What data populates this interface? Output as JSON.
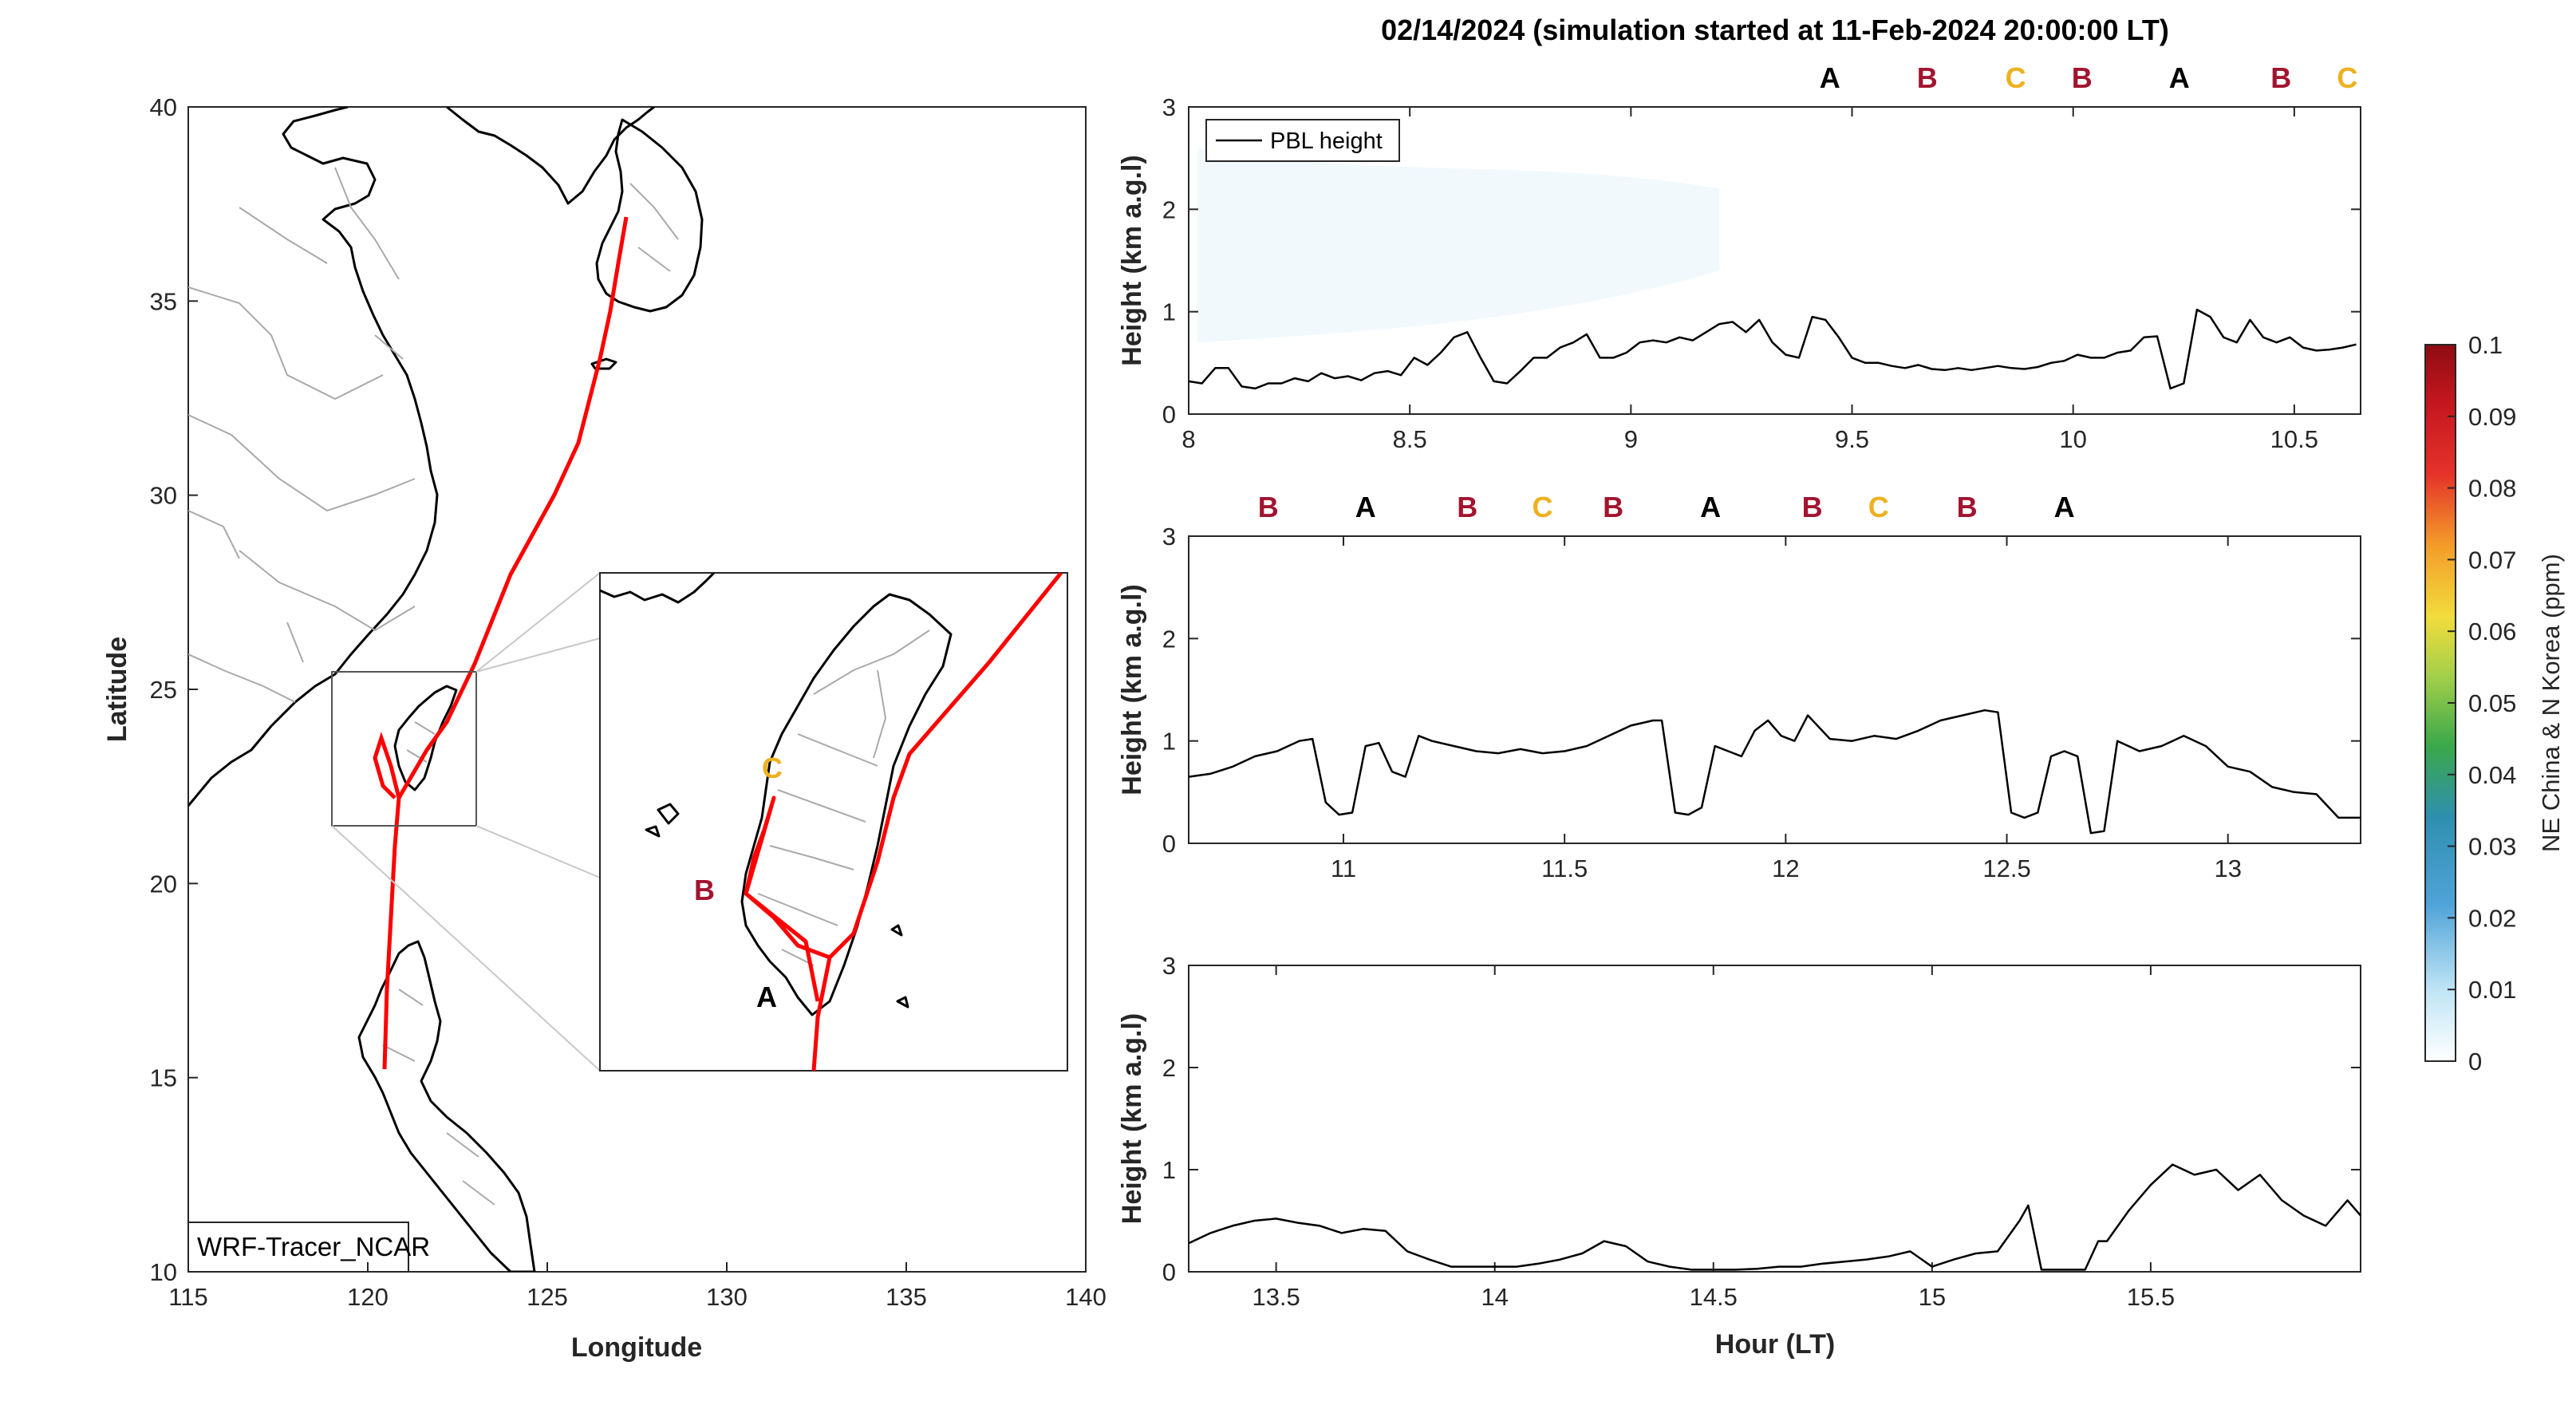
{
  "colors": {
    "marker_A": "#000000",
    "marker_B": "#a2142f",
    "marker_C": "#edb120",
    "track": "#ff0000",
    "pbl": "#000000"
  },
  "map": {
    "xlabel": "Longitude",
    "ylabel": "Latitude",
    "xlim": [
      115,
      140
    ],
    "ylim": [
      10,
      40
    ],
    "xticks": [
      "115",
      "120",
      "125",
      "130",
      "135",
      "140"
    ],
    "yticks": [
      "10",
      "15",
      "20",
      "25",
      "30",
      "35",
      "40"
    ],
    "model_label": "WRF-Tracer_NCAR",
    "inset_labels": [
      "A",
      "B",
      "C"
    ]
  },
  "title": "02/14/2024 (simulation started at 11-Feb-2024 20:00:00 LT)",
  "colorbar": {
    "label": "NE China & N Korea (ppm)",
    "ticks": [
      "0",
      "0.01",
      "0.02",
      "0.03",
      "0.04",
      "0.05",
      "0.06",
      "0.07",
      "0.08",
      "0.09",
      "0.1"
    ]
  },
  "chart_data": [
    {
      "type": "line",
      "xlim": [
        8,
        10.65
      ],
      "ylim": [
        0,
        3
      ],
      "ylabel": "Height (km a.g.l)",
      "xlabel": "",
      "xticks": [
        "8",
        "8.5",
        "9",
        "9.5",
        "10",
        "10.5"
      ],
      "yticks": [
        "0",
        "1",
        "2",
        "3"
      ],
      "legend": {
        "entry": "PBL height",
        "position": "top-left"
      },
      "markers": [
        {
          "x": 9.45,
          "label": "A"
        },
        {
          "x": 9.67,
          "label": "B"
        },
        {
          "x": 9.87,
          "label": "C"
        },
        {
          "x": 10.02,
          "label": "B"
        },
        {
          "x": 10.24,
          "label": "A"
        },
        {
          "x": 10.47,
          "label": "B"
        },
        {
          "x": 10.62,
          "label": "C"
        }
      ],
      "series": [
        {
          "name": "PBL height",
          "x": [
            8,
            8.03,
            8.06,
            8.09,
            8.12,
            8.15,
            8.18,
            8.21,
            8.24,
            8.27,
            8.3,
            8.33,
            8.36,
            8.39,
            8.42,
            8.45,
            8.48,
            8.51,
            8.54,
            8.57,
            8.6,
            8.63,
            8.66,
            8.69,
            8.72,
            8.75,
            8.78,
            8.81,
            8.84,
            8.87,
            8.9,
            8.93,
            8.96,
            8.99,
            9.02,
            9.05,
            9.08,
            9.11,
            9.14,
            9.17,
            9.2,
            9.23,
            9.26,
            9.29,
            9.32,
            9.35,
            9.38,
            9.41,
            9.44,
            9.47,
            9.5,
            9.53,
            9.56,
            9.59,
            9.62,
            9.65,
            9.68,
            9.71,
            9.74,
            9.77,
            9.8,
            9.83,
            9.86,
            9.89,
            9.92,
            9.95,
            9.98,
            10.01,
            10.04,
            10.07,
            10.1,
            10.13,
            10.16,
            10.19,
            10.22,
            10.25,
            10.28,
            10.31,
            10.34,
            10.37,
            10.4,
            10.43,
            10.46,
            10.49,
            10.52,
            10.55,
            10.58,
            10.61,
            10.64
          ],
          "values": [
            0.32,
            0.3,
            0.45,
            0.45,
            0.27,
            0.25,
            0.3,
            0.3,
            0.35,
            0.32,
            0.4,
            0.35,
            0.37,
            0.33,
            0.4,
            0.42,
            0.38,
            0.55,
            0.48,
            0.6,
            0.75,
            0.8,
            0.55,
            0.32,
            0.3,
            0.42,
            0.55,
            0.55,
            0.65,
            0.7,
            0.78,
            0.55,
            0.55,
            0.6,
            0.7,
            0.72,
            0.7,
            0.75,
            0.72,
            0.8,
            0.88,
            0.9,
            0.8,
            0.92,
            0.7,
            0.58,
            0.55,
            0.95,
            0.92,
            0.75,
            0.55,
            0.5,
            0.5,
            0.47,
            0.45,
            0.48,
            0.44,
            0.43,
            0.45,
            0.43,
            0.45,
            0.47,
            0.45,
            0.44,
            0.46,
            0.5,
            0.52,
            0.58,
            0.55,
            0.55,
            0.6,
            0.62,
            0.75,
            0.76,
            0.25,
            0.3,
            1.02,
            0.95,
            0.75,
            0.7,
            0.92,
            0.75,
            0.7,
            0.75,
            0.65,
            0.62,
            0.63,
            0.65,
            0.68
          ]
        }
      ]
    },
    {
      "type": "line",
      "xlim": [
        10.65,
        13.3
      ],
      "ylim": [
        0,
        3
      ],
      "ylabel": "Height (km a.g.l)",
      "xlabel": "",
      "xticks": [
        "11",
        "11.5",
        "12",
        "12.5",
        "13"
      ],
      "yticks": [
        "0",
        "1",
        "2",
        "3"
      ],
      "markers": [
        {
          "x": 10.83,
          "label": "B"
        },
        {
          "x": 11.05,
          "label": "A"
        },
        {
          "x": 11.28,
          "label": "B"
        },
        {
          "x": 11.45,
          "label": "C"
        },
        {
          "x": 11.61,
          "label": "B"
        },
        {
          "x": 11.83,
          "label": "A"
        },
        {
          "x": 12.06,
          "label": "B"
        },
        {
          "x": 12.21,
          "label": "C"
        },
        {
          "x": 12.41,
          "label": "B"
        },
        {
          "x": 12.63,
          "label": "A"
        }
      ],
      "series": [
        {
          "name": "PBL height",
          "x": [
            10.65,
            10.7,
            10.75,
            10.8,
            10.85,
            10.9,
            10.93,
            10.96,
            10.99,
            11.02,
            11.05,
            11.08,
            11.11,
            11.14,
            11.17,
            11.2,
            11.25,
            11.3,
            11.35,
            11.4,
            11.45,
            11.5,
            11.55,
            11.6,
            11.65,
            11.7,
            11.72,
            11.75,
            11.78,
            11.81,
            11.84,
            11.87,
            11.9,
            11.93,
            11.96,
            11.99,
            12.02,
            12.05,
            12.1,
            12.15,
            12.2,
            12.25,
            12.3,
            12.35,
            12.4,
            12.45,
            12.48,
            12.51,
            12.54,
            12.57,
            12.6,
            12.63,
            12.66,
            12.69,
            12.72,
            12.75,
            12.8,
            12.85,
            12.9,
            12.95,
            13.0,
            13.05,
            13.1,
            13.15,
            13.2,
            13.25,
            13.3
          ],
          "values": [
            0.65,
            0.68,
            0.75,
            0.85,
            0.9,
            1.0,
            1.02,
            0.4,
            0.28,
            0.3,
            0.95,
            0.98,
            0.7,
            0.65,
            1.05,
            1.0,
            0.95,
            0.9,
            0.88,
            0.92,
            0.88,
            0.9,
            0.95,
            1.05,
            1.15,
            1.2,
            1.2,
            0.3,
            0.28,
            0.35,
            0.95,
            0.9,
            0.85,
            1.1,
            1.2,
            1.05,
            1.0,
            1.25,
            1.02,
            1.0,
            1.05,
            1.02,
            1.1,
            1.2,
            1.25,
            1.3,
            1.28,
            0.3,
            0.25,
            0.3,
            0.85,
            0.9,
            0.85,
            0.1,
            0.12,
            1.0,
            0.9,
            0.95,
            1.05,
            0.95,
            0.75,
            0.7,
            0.55,
            0.5,
            0.48,
            0.25,
            0.25
          ]
        }
      ]
    },
    {
      "type": "line",
      "xlim": [
        13.3,
        15.98
      ],
      "ylim": [
        0,
        3
      ],
      "ylabel": "Height (km a.g.l)",
      "xlabel": "Hour (LT)",
      "xticks": [
        "13.5",
        "14",
        "14.5",
        "15",
        "15.5"
      ],
      "yticks": [
        "0",
        "1",
        "2",
        "3"
      ],
      "markers": [],
      "series": [
        {
          "name": "PBL height",
          "x": [
            13.3,
            13.35,
            13.4,
            13.45,
            13.5,
            13.55,
            13.6,
            13.65,
            13.7,
            13.75,
            13.8,
            13.85,
            13.9,
            13.95,
            14.0,
            14.05,
            14.1,
            14.15,
            14.2,
            14.25,
            14.3,
            14.35,
            14.4,
            14.45,
            14.5,
            14.55,
            14.6,
            14.65,
            14.7,
            14.75,
            14.8,
            14.85,
            14.9,
            14.95,
            15.0,
            15.05,
            15.1,
            15.15,
            15.2,
            15.22,
            15.25,
            15.3,
            15.35,
            15.38,
            15.4,
            15.45,
            15.5,
            15.55,
            15.6,
            15.65,
            15.7,
            15.75,
            15.8,
            15.85,
            15.9,
            15.95,
            15.98
          ],
          "values": [
            0.28,
            0.38,
            0.45,
            0.5,
            0.52,
            0.48,
            0.45,
            0.38,
            0.42,
            0.4,
            0.2,
            0.12,
            0.05,
            0.05,
            0.05,
            0.05,
            0.08,
            0.12,
            0.18,
            0.3,
            0.25,
            0.1,
            0.05,
            0.02,
            0.02,
            0.02,
            0.03,
            0.05,
            0.05,
            0.08,
            0.1,
            0.12,
            0.15,
            0.2,
            0.05,
            0.12,
            0.18,
            0.2,
            0.5,
            0.65,
            0.02,
            0.02,
            0.02,
            0.3,
            0.3,
            0.6,
            0.85,
            1.05,
            0.95,
            1.0,
            0.8,
            0.95,
            0.7,
            0.55,
            0.45,
            0.7,
            0.55
          ]
        }
      ]
    }
  ]
}
